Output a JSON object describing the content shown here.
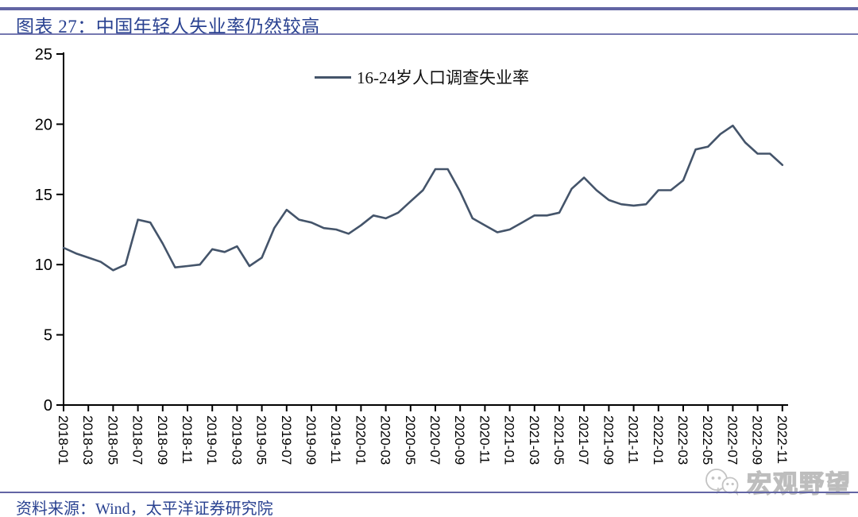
{
  "header": {
    "title": "图表 27：中国年轻人失业率仍然较高"
  },
  "legend": {
    "label": "16-24岁人口调查失业率"
  },
  "footer": {
    "source": "资料来源：Wind，太平洋证券研究院"
  },
  "watermark": {
    "name": "宏观野望",
    "icon": "wechat-icon"
  },
  "colors": {
    "line": "#44546a",
    "axis": "#000000",
    "title_text": "#2a4291",
    "rule": "#6265a4",
    "watermark_gray": "#bdbdbd"
  },
  "chart_data": {
    "type": "line",
    "title": "图表 27：中国年轻人失业率仍然较高",
    "xlabel": "",
    "ylabel": "",
    "ylim": [
      0,
      25
    ],
    "y_ticks": [
      0,
      5,
      10,
      15,
      20,
      25
    ],
    "grid": false,
    "legend_position": "top-center",
    "x_tick_labels": [
      "2018-01",
      "2018-03",
      "2018-05",
      "2018-07",
      "2018-09",
      "2018-11",
      "2019-01",
      "2019-03",
      "2019-05",
      "2019-07",
      "2019-09",
      "2019-11",
      "2020-01",
      "2020-03",
      "2020-05",
      "2020-07",
      "2020-09",
      "2020-11",
      "2021-01",
      "2021-03",
      "2021-05",
      "2021-07",
      "2021-09",
      "2021-11",
      "2022-01",
      "2022-03",
      "2022-05",
      "2022-07",
      "2022-09",
      "2022-11"
    ],
    "x": [
      "2018-01",
      "2018-02",
      "2018-03",
      "2018-04",
      "2018-05",
      "2018-06",
      "2018-07",
      "2018-08",
      "2018-09",
      "2018-10",
      "2018-11",
      "2018-12",
      "2019-01",
      "2019-02",
      "2019-03",
      "2019-04",
      "2019-05",
      "2019-06",
      "2019-07",
      "2019-08",
      "2019-09",
      "2019-10",
      "2019-11",
      "2019-12",
      "2020-01",
      "2020-02",
      "2020-03",
      "2020-04",
      "2020-05",
      "2020-06",
      "2020-07",
      "2020-08",
      "2020-09",
      "2020-10",
      "2020-11",
      "2020-12",
      "2021-01",
      "2021-02",
      "2021-03",
      "2021-04",
      "2021-05",
      "2021-06",
      "2021-07",
      "2021-08",
      "2021-09",
      "2021-10",
      "2021-11",
      "2021-12",
      "2022-01",
      "2022-02",
      "2022-03",
      "2022-04",
      "2022-05",
      "2022-06",
      "2022-07",
      "2022-08",
      "2022-09",
      "2022-10",
      "2022-11"
    ],
    "series": [
      {
        "name": "16-24岁人口调查失业率",
        "color": "#44546a",
        "values": [
          11.2,
          10.8,
          10.5,
          10.2,
          9.6,
          10.0,
          13.2,
          13.0,
          11.5,
          9.8,
          9.9,
          10.0,
          11.1,
          10.9,
          11.3,
          9.9,
          10.5,
          12.6,
          13.9,
          13.2,
          13.0,
          12.6,
          12.5,
          12.2,
          12.8,
          13.5,
          13.3,
          13.7,
          14.5,
          15.3,
          16.8,
          16.8,
          15.2,
          13.3,
          12.8,
          12.3,
          12.5,
          13.0,
          13.5,
          13.5,
          13.7,
          15.4,
          16.2,
          15.3,
          14.6,
          14.3,
          14.2,
          14.3,
          15.3,
          15.3,
          16.0,
          18.2,
          18.4,
          19.3,
          19.9,
          18.7,
          17.9,
          17.9,
          17.1
        ]
      }
    ]
  }
}
